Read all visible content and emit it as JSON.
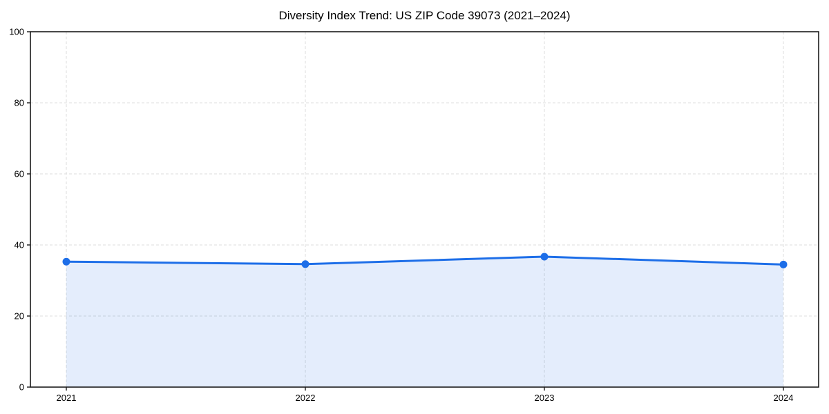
{
  "title": "Diversity Index Trend: US ZIP Code 39073 (2021–2024)",
  "chart_data": {
    "type": "area",
    "x": [
      2021,
      2022,
      2023,
      2024
    ],
    "series": [
      {
        "name": "Diversity Index",
        "values": [
          35.3,
          34.6,
          36.7,
          34.5
        ]
      }
    ],
    "title": "Diversity Index Trend: US ZIP Code 39073 (2021–2024)",
    "xlabel": "",
    "ylabel": "",
    "ylim": [
      0,
      100
    ],
    "yticks": [
      0,
      20,
      40,
      60,
      80,
      100
    ],
    "xtick_labels": [
      "2021",
      "2022",
      "2023",
      "2024"
    ],
    "grid": true,
    "grid_style": "dashed",
    "legend": null,
    "markers": true,
    "colors": {
      "line": "#1d6ee8",
      "marker": "#1d6ee8",
      "fill": "#1d6ee8",
      "fill_opacity": 0.12,
      "grid": "#dcdcdc",
      "spine": "#1a1a1a",
      "text": "#000000",
      "background": "#ffffff"
    }
  }
}
